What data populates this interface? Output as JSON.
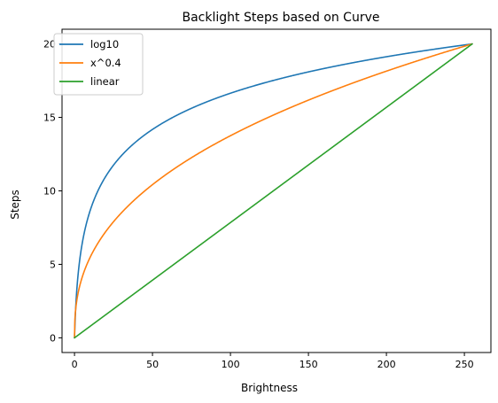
{
  "chart_data": {
    "type": "line",
    "title": "Backlight Steps based on Curve",
    "xlabel": "Brightness",
    "ylabel": "Steps",
    "xlim": [
      -8,
      267
    ],
    "ylim": [
      -1,
      21
    ],
    "xticks": [
      0,
      50,
      100,
      150,
      200,
      250
    ],
    "yticks": [
      0,
      5,
      10,
      15,
      20
    ],
    "grid": false,
    "legend_position": "top-left",
    "x_max": 255,
    "steps_max": 20,
    "series": [
      {
        "name": "log10",
        "color": "#1f77b4",
        "x": [
          0,
          1,
          2,
          3,
          5,
          10,
          15,
          20,
          30,
          40,
          50,
          60,
          70,
          80,
          100,
          120,
          150,
          180,
          200,
          220,
          255
        ],
        "y": [
          0,
          2.5,
          3.96,
          5.0,
          6.47,
          8.64,
          9.99,
          10.98,
          12.38,
          13.37,
          14.14,
          14.77,
          15.3,
          15.76,
          16.53,
          17.17,
          17.97,
          18.64,
          19.04,
          19.4,
          20.0
        ]
      },
      {
        "name": "x^0.4",
        "color": "#ff7f0e",
        "x": [
          0,
          1,
          2,
          3,
          5,
          10,
          15,
          20,
          30,
          40,
          50,
          60,
          70,
          80,
          100,
          120,
          150,
          180,
          200,
          220,
          255
        ],
        "y": [
          0,
          2.18,
          2.87,
          3.37,
          4.13,
          5.45,
          6.4,
          7.18,
          8.44,
          9.46,
          10.35,
          11.14,
          11.85,
          12.5,
          13.71,
          14.79,
          16.2,
          17.42,
          18.16,
          18.87,
          20.0
        ]
      },
      {
        "name": "linear",
        "color": "#2ca02c",
        "x": [
          0,
          255
        ],
        "y": [
          0,
          20
        ]
      }
    ]
  }
}
